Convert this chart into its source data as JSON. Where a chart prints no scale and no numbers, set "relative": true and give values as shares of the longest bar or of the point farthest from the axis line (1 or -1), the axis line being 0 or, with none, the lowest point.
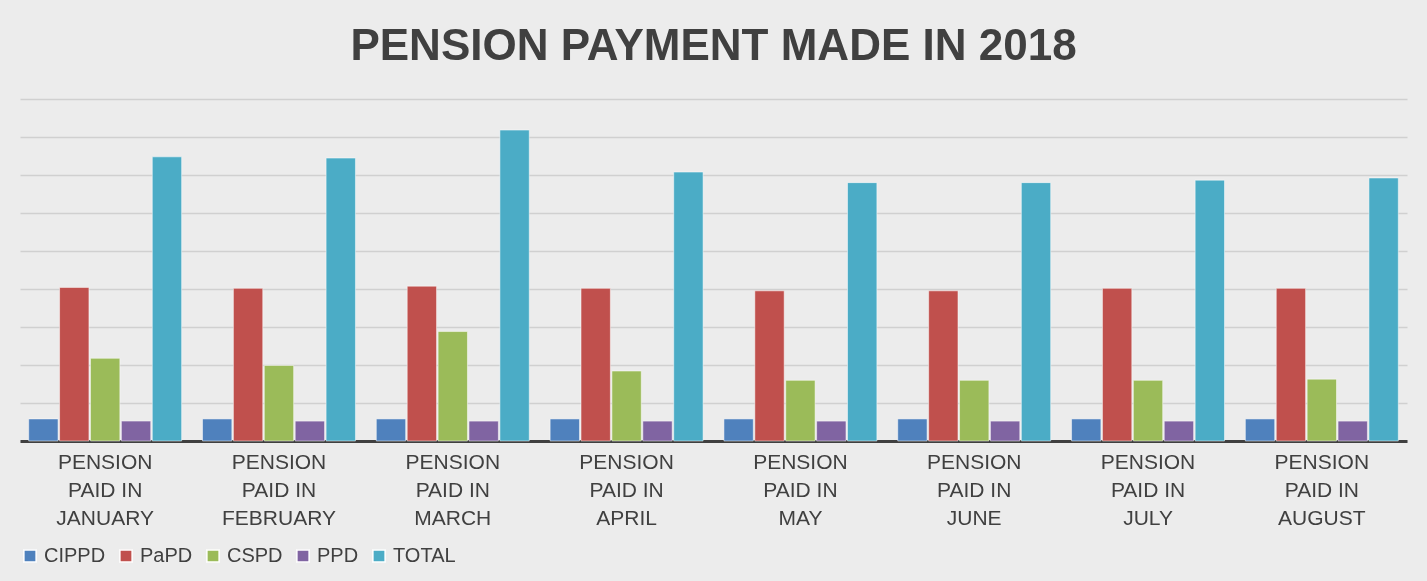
{
  "chart_data": {
    "type": "bar",
    "title": "PENSION PAYMENT MADE IN 2018",
    "relative": true,
    "grid": "y",
    "legend": "bottom",
    "categories": [
      "PENSION PAID IN JANUARY",
      "PENSION PAID IN FEBRUARY",
      "PENSION PAID IN MARCH",
      "PENSION PAID IN APRIL",
      "PENSION PAID IN MAY",
      "PENSION PAID IN JUNE",
      "PENSION PAID IN JULY",
      "PENSION PAID IN AUGUST"
    ],
    "series": [
      {
        "name": "CIPPD",
        "color": "#4f81bd",
        "values": [
          0.071,
          0.071,
          0.071,
          0.071,
          0.071,
          0.071,
          0.071,
          0.071
        ]
      },
      {
        "name": "PaPD",
        "color": "#c0504d",
        "values": [
          0.494,
          0.491,
          0.498,
          0.491,
          0.483,
          0.483,
          0.491,
          0.491
        ]
      },
      {
        "name": "CSPD",
        "color": "#9bbb59",
        "values": [
          0.266,
          0.243,
          0.352,
          0.225,
          0.195,
          0.195,
          0.195,
          0.199
        ]
      },
      {
        "name": "PPD",
        "color": "#8064a2",
        "values": [
          0.064,
          0.064,
          0.064,
          0.064,
          0.064,
          0.064,
          0.064,
          0.064
        ]
      },
      {
        "name": "TOTAL",
        "color": "#4bacc6",
        "values": [
          0.914,
          0.91,
          1,
          0.865,
          0.831,
          0.831,
          0.839,
          0.846
        ]
      }
    ]
  }
}
